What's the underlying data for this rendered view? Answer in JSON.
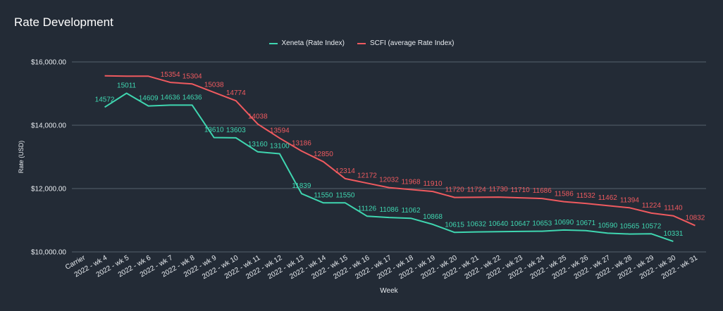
{
  "chart_data": {
    "type": "line",
    "title": "Rate Development",
    "xlabel": "Week",
    "ylabel": "Rate (USD)",
    "ylim": [
      10000,
      16000
    ],
    "y_ticks": [
      "$10,000.00",
      "$12,000.00",
      "$14,000.00",
      "$16,000.00"
    ],
    "y_tick_values": [
      10000,
      12000,
      14000,
      16000
    ],
    "grid": true,
    "legend_position": "top-center",
    "categories": [
      "Carrier",
      "2022 - wk 4",
      "2022 - wk 5",
      "2022 - wk 6",
      "2022 - wk 7",
      "2022 - wk 8",
      "2022 - wk 9",
      "2022 - wk 10",
      "2022 - wk 11",
      "2022 - wk 12",
      "2022 - wk 13",
      "2022 - wk 14",
      "2022 - wk 15",
      "2022 - wk 16",
      "2022 - wk 17",
      "2022 - wk 18",
      "2022 - wk 19",
      "2022 - wk 20",
      "2022 - wk 21",
      "2022 - wk 22",
      "2022 - wk 23",
      "2022 - wk 24",
      "2022 - wk 25",
      "2022 - wk 26",
      "2022 - wk 27",
      "2022 - wk 28",
      "2022 - wk 29",
      "2022 - wk 30",
      "2022 - wk 31"
    ],
    "series": [
      {
        "name": "Xeneta (Rate Index)",
        "color": "#3fd6b0",
        "values": [
          null,
          14572,
          15011,
          14609,
          14636,
          14636,
          13610,
          13603,
          13160,
          13100,
          11839,
          11550,
          11550,
          11126,
          11086,
          11062,
          10868,
          10615,
          10632,
          10640,
          10647,
          10653,
          10690,
          10671,
          10590,
          10565,
          10572,
          10331,
          null
        ]
      },
      {
        "name": "SCFI (average Rate Index)",
        "color": "#ef5a5f",
        "values": [
          null,
          15560,
          15550,
          15550,
          15354,
          15304,
          15038,
          14774,
          14038,
          13594,
          13186,
          12850,
          12314,
          12172,
          12032,
          11968,
          11910,
          11720,
          11724,
          11730,
          11710,
          11686,
          11586,
          11532,
          11462,
          11394,
          11224,
          11140,
          10832
        ],
        "labeled": [
          false,
          false,
          false,
          false,
          true,
          true,
          true,
          true,
          true,
          true,
          true,
          true,
          true,
          true,
          true,
          true,
          true,
          true,
          true,
          true,
          true,
          true,
          true,
          true,
          true,
          true,
          true,
          true,
          true
        ]
      }
    ]
  }
}
